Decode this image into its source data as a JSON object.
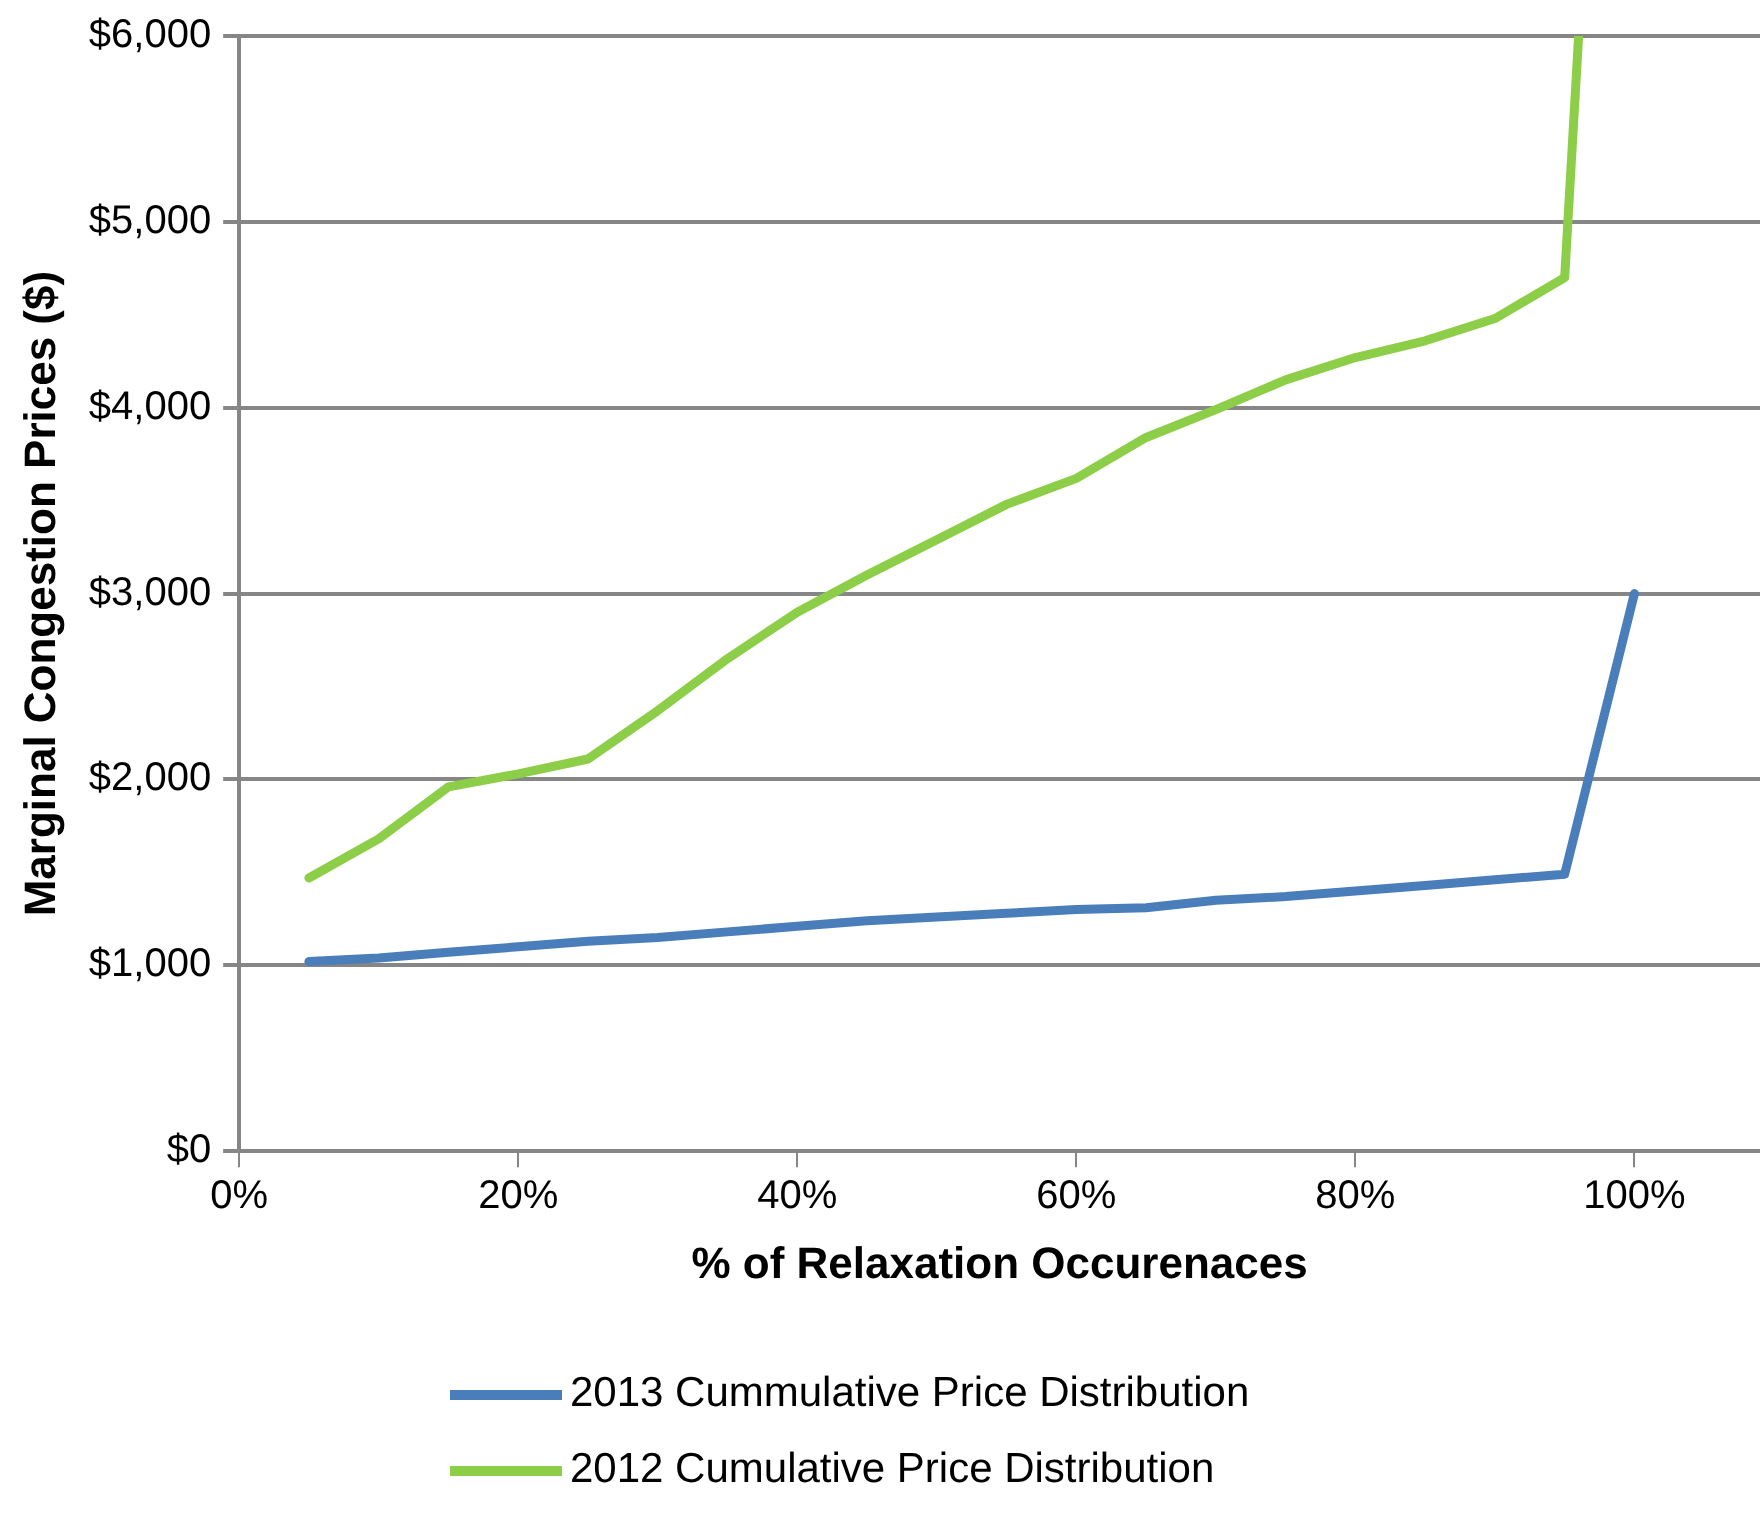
{
  "chart_data": {
    "type": "line",
    "xlabel": "% of Relaxation Occurenaces",
    "ylabel": "Marginal Congestion Prices ($)",
    "xlim": [
      0,
      109
    ],
    "xticks": [
      {
        "value": 0,
        "label": "0%"
      },
      {
        "value": 20,
        "label": "20%"
      },
      {
        "value": 40,
        "label": "40%"
      },
      {
        "value": 60,
        "label": "60%"
      },
      {
        "value": 80,
        "label": "80%"
      },
      {
        "value": 100,
        "label": "100%"
      }
    ],
    "ylim": [
      0,
      6000
    ],
    "yticks": [
      {
        "value": 0,
        "label": "$0"
      },
      {
        "value": 1000,
        "label": "$1,000"
      },
      {
        "value": 2000,
        "label": "$2,000"
      },
      {
        "value": 3000,
        "label": "$3,000"
      },
      {
        "value": 4000,
        "label": "$4,000"
      },
      {
        "value": 5000,
        "label": "$5,000"
      },
      {
        "value": 6000,
        "label": "$6,000"
      }
    ],
    "grid": "y",
    "legend": "bottom",
    "marker": "none",
    "line_style": "solid",
    "series": [
      {
        "name": "2013 Cummulative Price Distribution",
        "color": "#4a7ebb",
        "x": [
          5,
          10,
          15,
          20,
          25,
          30,
          35,
          40,
          45,
          50,
          55,
          60,
          65,
          70,
          75,
          80,
          85,
          90,
          95,
          100
        ],
        "values": [
          1020,
          1040,
          1070,
          1100,
          1130,
          1150,
          1180,
          1210,
          1240,
          1260,
          1280,
          1300,
          1310,
          1350,
          1370,
          1400,
          1430,
          1460,
          1490,
          3000
        ]
      },
      {
        "name": "2012 Cumulative Price Distribution",
        "color": "#8cce48",
        "x": [
          5,
          10,
          15,
          20,
          25,
          30,
          35,
          40,
          45,
          50,
          55,
          60,
          65,
          70,
          75,
          80,
          85,
          90,
          95,
          96
        ],
        "values": [
          1470,
          1680,
          1960,
          2030,
          2110,
          2370,
          2650,
          2900,
          3100,
          3290,
          3480,
          3620,
          3840,
          3990,
          4150,
          4270,
          4360,
          4480,
          4700,
          6000
        ]
      }
    ]
  }
}
